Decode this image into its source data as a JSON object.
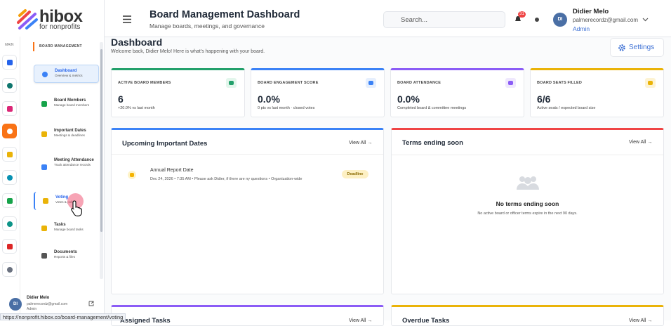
{
  "logo": {
    "name": "hibox",
    "tagline": "for nonprofits"
  },
  "rail": {
    "section": "MAIN"
  },
  "sidebar": {
    "section": "BOARD MANAGEMENT",
    "items": [
      {
        "label": "Dashboard",
        "desc": "Overview & metrics"
      },
      {
        "label": "Board Members",
        "desc": "Manage board members"
      },
      {
        "label": "Important Dates",
        "desc": "Meetings & deadlines"
      },
      {
        "label": "Meeting Attendance",
        "desc": "Track attendance records"
      },
      {
        "label": "Voting",
        "desc": "Votes & polls"
      },
      {
        "label": "Tasks",
        "desc": "Manage board tasks"
      },
      {
        "label": "Documents",
        "desc": "Reports & files"
      }
    ],
    "user": {
      "initials": "DI",
      "name": "Didier Melo",
      "email": "palmerecordz@gmail.com",
      "role": "Admin"
    }
  },
  "header": {
    "title": "Board Management Dashboard",
    "subtitle": "Manage boards, meetings, and governance",
    "search": "Search...",
    "notifications": 31,
    "user": {
      "initials": "DI",
      "name": "Didier Melo",
      "email": "palmerecordz@gmail.com",
      "role": "Admin"
    }
  },
  "page": {
    "title": "Dashboard",
    "welcome": "Welcome back, Didier Melo! Here is what's happening with your board.",
    "settings": "Settings"
  },
  "stats": [
    {
      "label": "ACTIVE BOARD MEMBERS",
      "value": "6",
      "note": "+20.0% vs last month"
    },
    {
      "label": "BOARD ENGAGEMENT SCORE",
      "value": "0.0%",
      "note": "0 pts vs last month · closed votes"
    },
    {
      "label": "BOARD ATTENDANCE",
      "value": "0.0%",
      "note": "Completed board & committee meetings"
    },
    {
      "label": "BOARD SEATS FILLED",
      "value": "6/6",
      "note": "Active seats / expected board size"
    }
  ],
  "upcoming": {
    "title": "Upcoming Important Dates",
    "view_all": "View All →",
    "items": [
      {
        "title": "Annual Report Date",
        "meta": "Dec 24, 2026 • 7:35 AM • Please ask Didier, if there are ny questions • Organization-wide",
        "badge": "Deadline"
      }
    ]
  },
  "terms": {
    "title": "Terms ending soon",
    "view_all": "View All →",
    "empty_title": "No terms ending soon",
    "empty_text": "No active board or officer terms expire in the next 90 days."
  },
  "assigned": {
    "title": "Assigned Tasks",
    "view_all": "View All →"
  },
  "overdue": {
    "title": "Overdue Tasks",
    "view_all": "View All →"
  },
  "status_bar": "https://nonprofit.hibox.co/board-management/voting"
}
